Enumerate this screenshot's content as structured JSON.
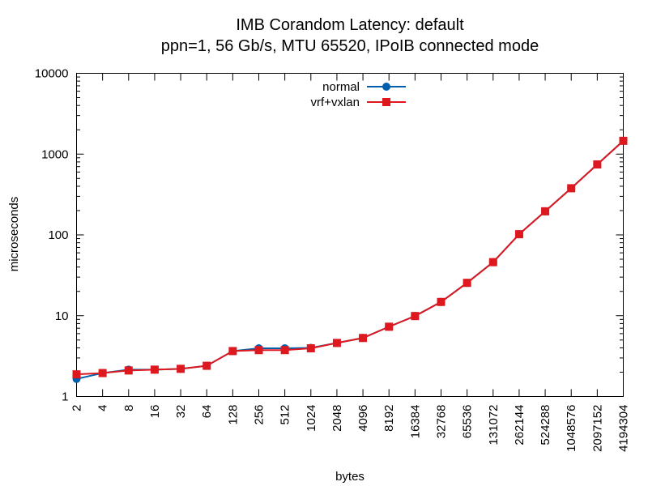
{
  "chart_data": {
    "type": "line",
    "title": "IMB Corandom Latency: default",
    "subtitle": "ppn=1, 56 Gb/s, MTU 65520, IPoIB connected mode",
    "xlabel": "bytes",
    "ylabel": "microseconds",
    "x_scale": "log",
    "y_scale": "log",
    "xlim": [
      2,
      4194304
    ],
    "ylim": [
      1,
      10000
    ],
    "x_tick_labels": [
      "2",
      "4",
      "8",
      "16",
      "32",
      "64",
      "128",
      "256",
      "512",
      "1024",
      "2048",
      "4096",
      "8192",
      "16384",
      "32768",
      "65536",
      "131072",
      "262144",
      "524288",
      "1048576",
      "2097152",
      "4194304"
    ],
    "y_tick_labels": [
      "1",
      "10",
      "100",
      "1000",
      "10000"
    ],
    "legend_position": "top-center",
    "x": [
      2,
      4,
      8,
      16,
      32,
      64,
      128,
      256,
      512,
      1024,
      2048,
      4096,
      8192,
      16384,
      32768,
      65536,
      131072,
      262144,
      524288,
      1048576,
      2097152,
      4194304
    ],
    "series": [
      {
        "name": "normal",
        "color": "#0060ad",
        "marker": "circle",
        "values": [
          1.65,
          1.95,
          2.15,
          2.15,
          2.2,
          2.4,
          3.65,
          3.95,
          3.95,
          4.0,
          4.6,
          5.3,
          7.3,
          9.9,
          14.8,
          25.5,
          46,
          102,
          196,
          378,
          745,
          1460
        ]
      },
      {
        "name": "vrf+vxlan",
        "color": "#dd181f",
        "marker": "square",
        "values": [
          1.88,
          1.95,
          2.1,
          2.15,
          2.2,
          2.4,
          3.65,
          3.75,
          3.75,
          3.95,
          4.6,
          5.3,
          7.3,
          9.9,
          14.8,
          25.5,
          46,
          102,
          196,
          378,
          745,
          1460
        ]
      }
    ]
  }
}
